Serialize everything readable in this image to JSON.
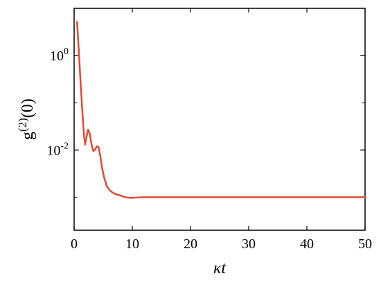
{
  "chart_data": {
    "type": "line",
    "xlabel": "κt",
    "ylabel": "g(2)(0)",
    "ylabel_parts": {
      "base": "g",
      "sup": "(2)",
      "arg": "(0)"
    },
    "xlabel_parts": {
      "greek": "κ",
      "var": "t"
    },
    "xlim": [
      0,
      50
    ],
    "ylim": [
      0.0002,
      10
    ],
    "yscale": "log",
    "grid": false,
    "x_ticks": [
      "0",
      "10",
      "20",
      "30",
      "40",
      "50"
    ],
    "y_ticks": [
      {
        "value": 1,
        "base": "10",
        "exp": "0"
      },
      {
        "value": 0.01,
        "base": "10",
        "exp": "-2"
      }
    ],
    "series": [
      {
        "color": "#e24a33",
        "x": [
          0.5,
          0.8,
          1.1,
          1.4,
          1.7,
          1.9,
          2.1,
          2.4,
          2.7,
          3.0,
          3.3,
          3.6,
          3.9,
          4.2,
          4.5,
          4.8,
          5.2,
          5.6,
          6.0,
          6.5,
          7.0,
          7.5,
          8.0,
          8.5,
          9.0,
          9.5,
          10.0,
          10.5,
          11.0,
          12.0,
          14.0,
          16.0,
          20.0,
          25.0,
          30.0,
          35.0,
          40.0,
          45.0,
          50.0
        ],
        "y": [
          5.2,
          1.3,
          0.28,
          0.07,
          0.02,
          0.013,
          0.018,
          0.027,
          0.022,
          0.013,
          0.0095,
          0.0102,
          0.012,
          0.0115,
          0.0075,
          0.0042,
          0.0025,
          0.00175,
          0.00145,
          0.00128,
          0.00118,
          0.00113,
          0.00108,
          0.00103,
          0.00099,
          0.00097,
          0.00097,
          0.00098,
          0.00099,
          0.001,
          0.001,
          0.001,
          0.001,
          0.001,
          0.001,
          0.001,
          0.001,
          0.001,
          0.001
        ]
      }
    ]
  }
}
